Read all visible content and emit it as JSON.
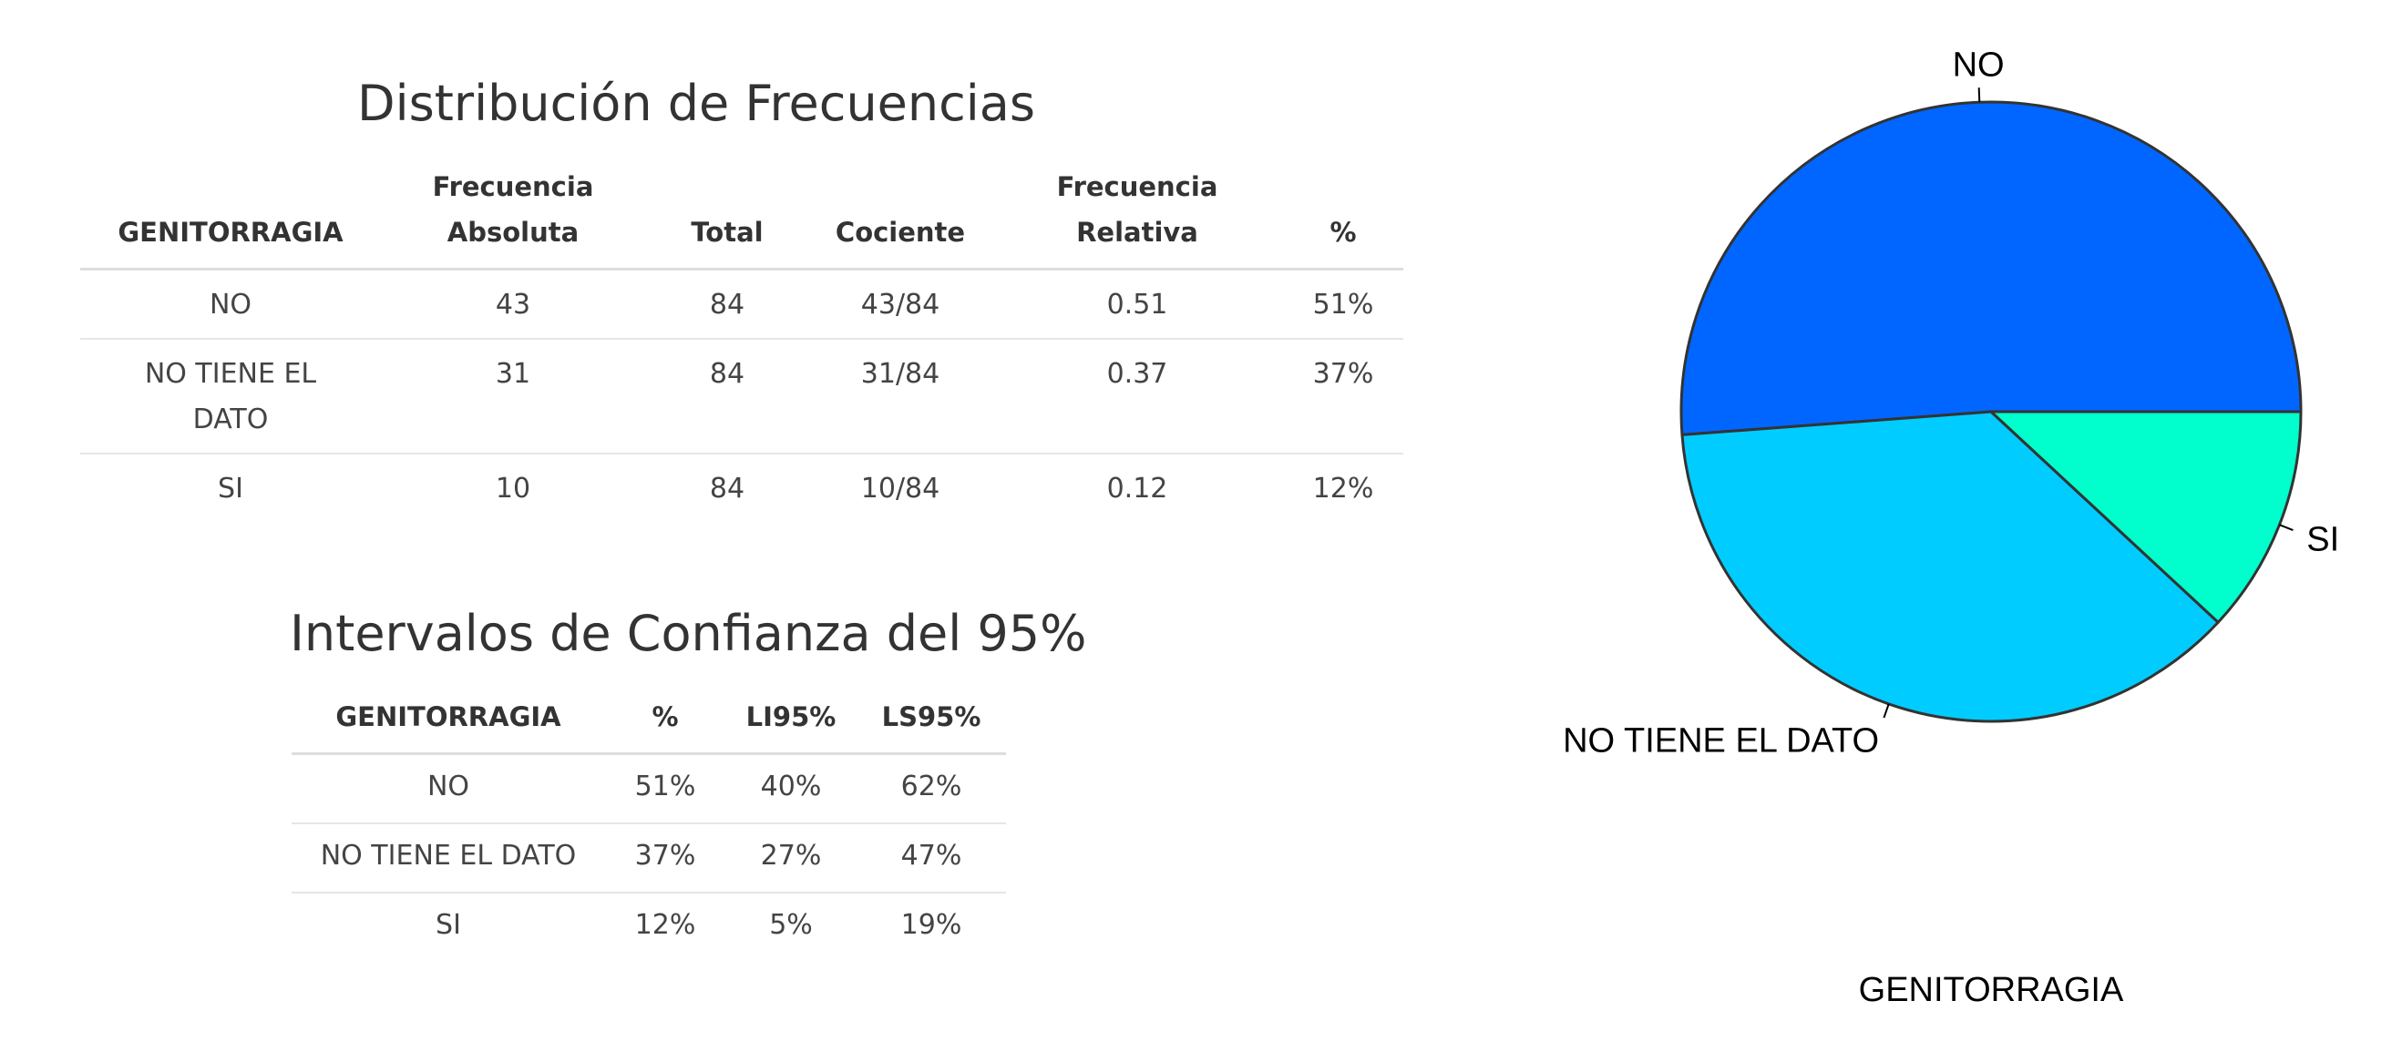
{
  "frequency_table": {
    "title": "Distribución de Frecuencias",
    "headers": [
      [
        "GENITORRAGIA"
      ],
      [
        "Frecuencia",
        "Absoluta"
      ],
      [
        "Total"
      ],
      [
        "Cociente"
      ],
      [
        "Frecuencia",
        "Relativa"
      ],
      [
        "%"
      ]
    ],
    "rows": [
      {
        "category": [
          "NO"
        ],
        "absolute": "43",
        "total": "84",
        "ratio": "43/84",
        "relative": "0.51",
        "percent": "51%"
      },
      {
        "category": [
          "NO TIENE EL",
          "DATO"
        ],
        "absolute": "31",
        "total": "84",
        "ratio": "31/84",
        "relative": "0.37",
        "percent": "37%"
      },
      {
        "category": [
          "SI"
        ],
        "absolute": "10",
        "total": "84",
        "ratio": "10/84",
        "relative": "0.12",
        "percent": "12%"
      }
    ]
  },
  "confidence_table": {
    "title": "Intervalos de Confianza del 95%",
    "headers": [
      "GENITORRAGIA",
      "%",
      "LI95%",
      "LS95%"
    ],
    "rows": [
      [
        "NO",
        "51%",
        "40%",
        "62%"
      ],
      [
        "NO TIENE EL DATO",
        "37%",
        "27%",
        "47%"
      ],
      [
        "SI",
        "12%",
        "5%",
        "19%"
      ]
    ]
  },
  "chart_data": {
    "type": "pie",
    "xlabel": "GENITORRAGIA",
    "start_angle_deg": 0,
    "direction": "counterclockwise",
    "slices": [
      {
        "label": "NO",
        "value": 43,
        "color": "#0066ff"
      },
      {
        "label": "NO TIENE EL DATO",
        "value": 31,
        "color": "#00ccff"
      },
      {
        "label": "SI",
        "value": 10,
        "color": "#00ffcc"
      }
    ],
    "outline_color": "#333333"
  }
}
